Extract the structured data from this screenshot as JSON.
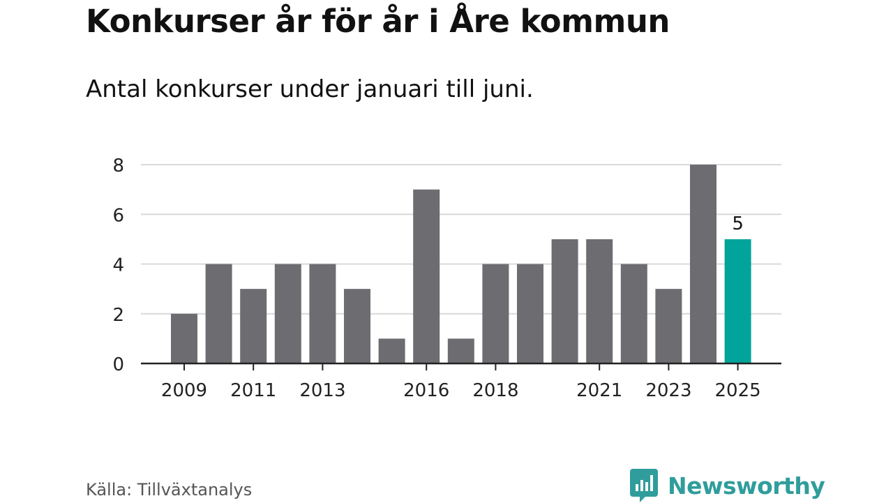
{
  "title": "Konkurser år för år i Åre kommun",
  "subtitle": "Antal konkurser under januari till juni.",
  "source": "Källa: Tillväxtanalys",
  "brand": {
    "name": "Newsworthy",
    "logo_icon": "bar-chart-speech-bubble-icon",
    "color": "#2f9d9c"
  },
  "colors": {
    "bar": "#6d6c71",
    "highlight": "#00a49a",
    "grid": "#d9d9d9",
    "axis": "#222222"
  },
  "chart_data": {
    "type": "bar",
    "categories": [
      "2009",
      "2010",
      "2011",
      "2012",
      "2013",
      "2014",
      "2015",
      "2016",
      "2017",
      "2018",
      "2019",
      "2020",
      "2021",
      "2022",
      "2023",
      "2024",
      "2025"
    ],
    "values": [
      2,
      4,
      3,
      4,
      4,
      3,
      1,
      7,
      1,
      4,
      4,
      5,
      5,
      4,
      3,
      8,
      5
    ],
    "highlight_category": "2025",
    "data_labels": [
      {
        "category": "2025",
        "text": "5"
      }
    ],
    "x_tick_labels": [
      "2009",
      "2011",
      "2013",
      "2016",
      "2018",
      "2021",
      "2023",
      "2025"
    ],
    "y_ticks": [
      0,
      2,
      4,
      6,
      8
    ],
    "ylim": [
      0,
      8
    ],
    "grid": "horizontal",
    "legend": "none",
    "xlabel": "",
    "ylabel": ""
  }
}
